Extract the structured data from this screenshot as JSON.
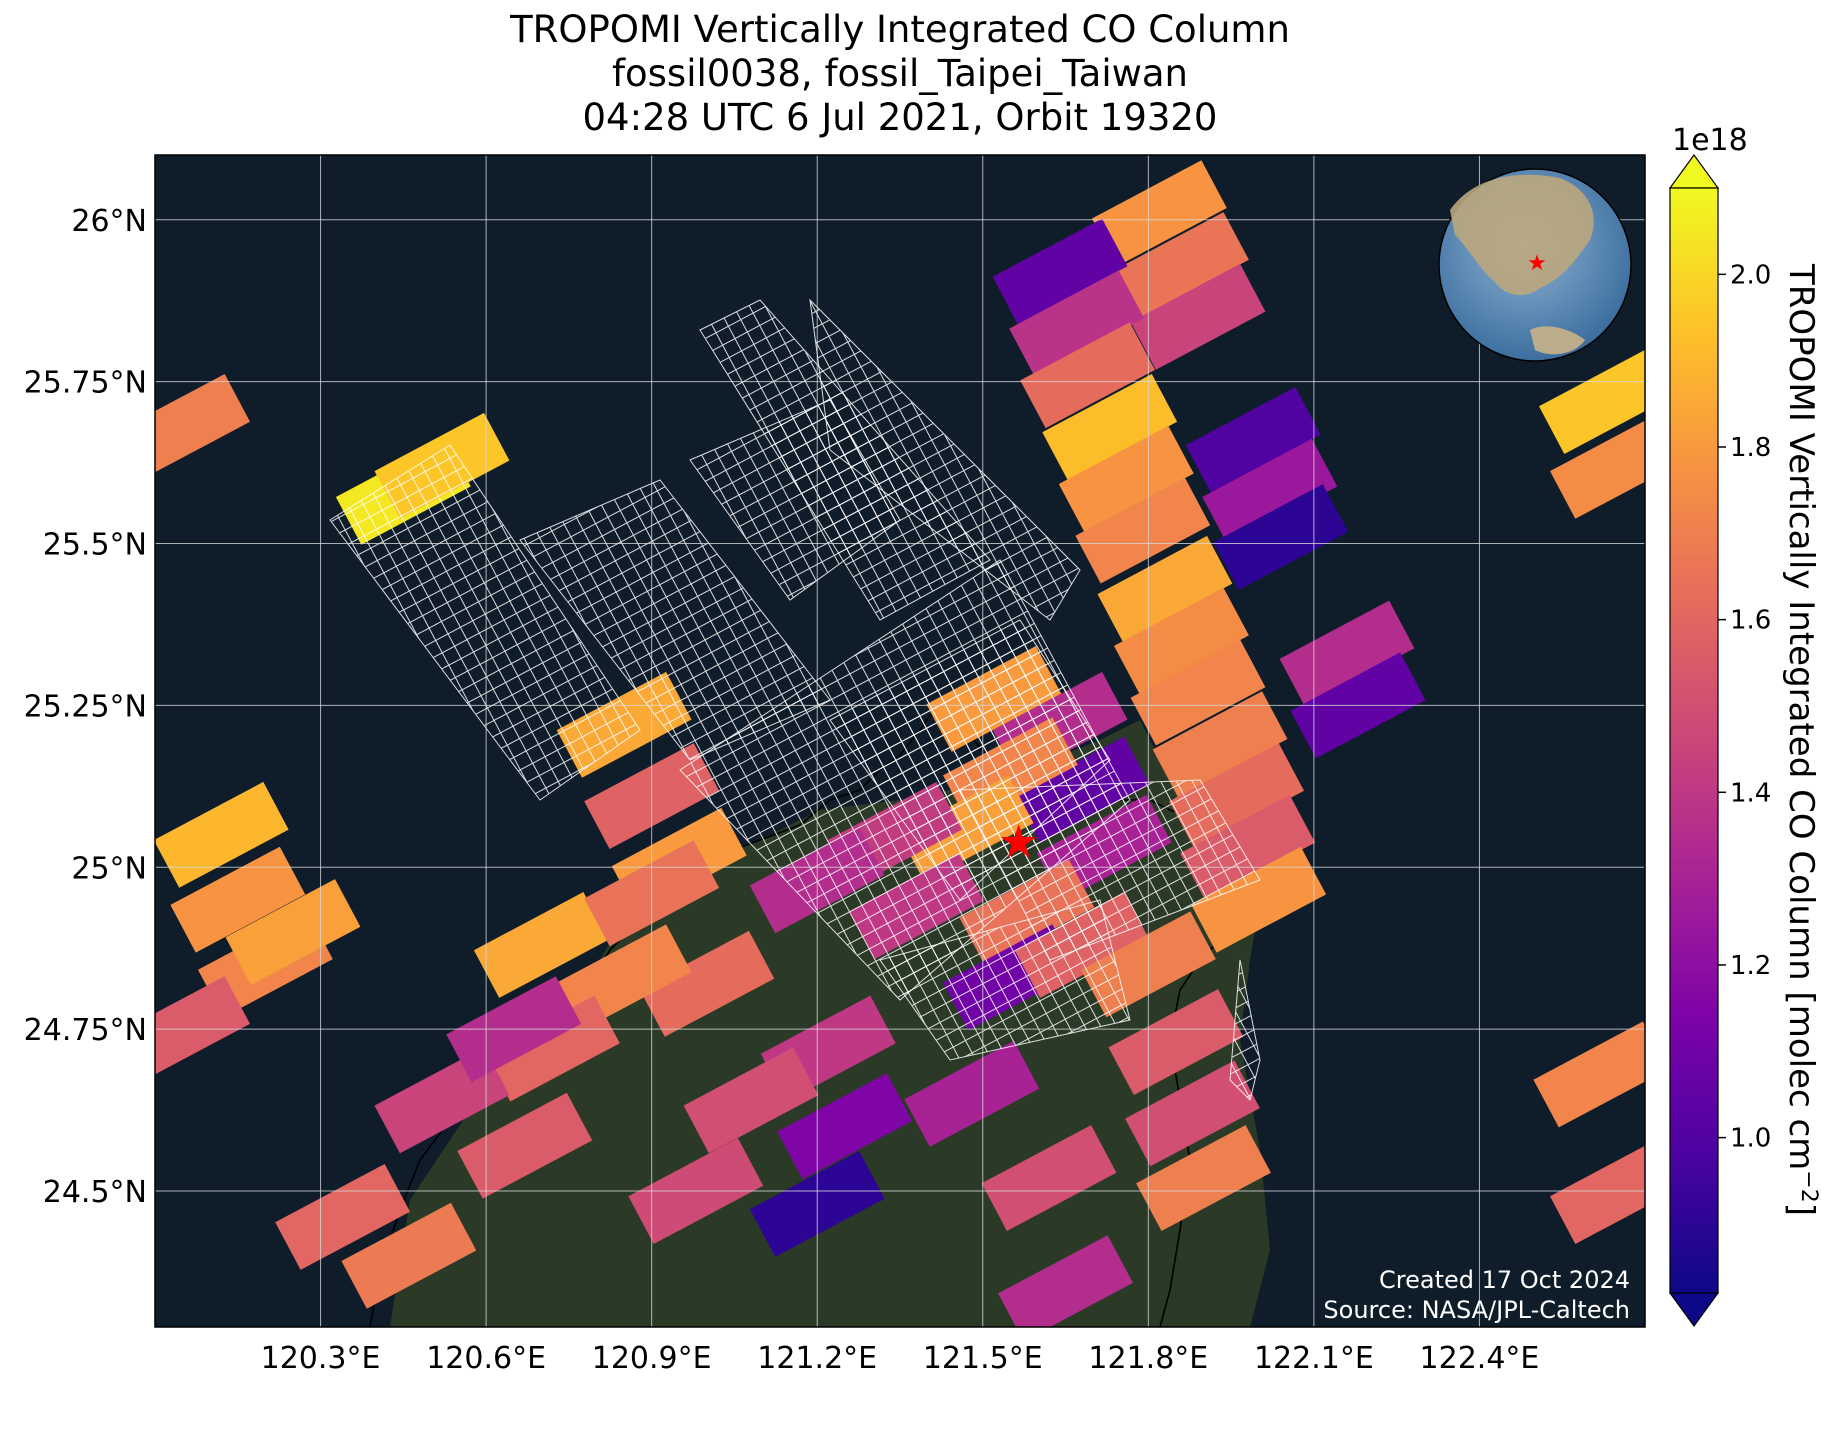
{
  "title": {
    "line1": "TROPOMI Vertically Integrated CO Column",
    "line2": "fossil0038, fossil_Taipei_Taiwan",
    "line3": "04:28 UTC 6 Jul 2021, Orbit 19320"
  },
  "map": {
    "lon_range": [
      120.0,
      122.7
    ],
    "lat_range": [
      24.29,
      26.1
    ],
    "lon_ticks": [
      {
        "value": 120.3,
        "label": "120.3°E"
      },
      {
        "value": 120.6,
        "label": "120.6°E"
      },
      {
        "value": 120.9,
        "label": "120.9°E"
      },
      {
        "value": 121.2,
        "label": "121.2°E"
      },
      {
        "value": 121.5,
        "label": "121.5°E"
      },
      {
        "value": 121.8,
        "label": "121.8°E"
      },
      {
        "value": 122.1,
        "label": "122.1°E"
      },
      {
        "value": 122.4,
        "label": "122.4°E"
      }
    ],
    "lat_ticks": [
      {
        "value": 26.0,
        "label": "26°N"
      },
      {
        "value": 25.75,
        "label": "25.75°N"
      },
      {
        "value": 25.5,
        "label": "25.5°N"
      },
      {
        "value": 25.25,
        "label": "25.25°N"
      },
      {
        "value": 25.0,
        "label": "25°N"
      },
      {
        "value": 24.75,
        "label": "24.75°N"
      },
      {
        "value": 24.5,
        "label": "24.5°N"
      }
    ],
    "site_marker": {
      "lon": 121.565,
      "lat": 25.04,
      "color": "#ff0000",
      "icon": "star-icon"
    },
    "background": "satellite-imagery",
    "ocean_color": "#0f1d2b",
    "land_color": "#2a3a26",
    "gridlines": true
  },
  "colorbar": {
    "exponent_label": "1e18",
    "label": "TROPOMI Vertically Integrated CO Column [molec cm",
    "label_exp": "−2",
    "label_close": "]",
    "range": [
      0.82,
      2.1
    ],
    "ticks": [
      {
        "value": 1.0,
        "label": "1.0"
      },
      {
        "value": 1.2,
        "label": "1.2"
      },
      {
        "value": 1.4,
        "label": "1.4"
      },
      {
        "value": 1.6,
        "label": "1.6"
      },
      {
        "value": 1.8,
        "label": "1.8"
      },
      {
        "value": 2.0,
        "label": "2.0"
      }
    ],
    "colormap": "plasma",
    "extend": "both"
  },
  "footer": {
    "created": "Created 17 Oct 2024",
    "source": "Source: NASA/JPL-Caltech"
  },
  "inset_globe": {
    "icon": "globe-icon",
    "marker_icon": "star-icon",
    "marker_color": "#ff0000"
  },
  "chart_data": {
    "type": "heatmap",
    "title": "TROPOMI Vertically Integrated CO Column",
    "xlabel": "",
    "ylabel": "",
    "units": "molec cm^-2 (x1e18)",
    "pixels": [
      {
        "lon": 121.82,
        "lat": 26.01,
        "value": 1.78
      },
      {
        "lon": 121.86,
        "lat": 25.93,
        "value": 1.66
      },
      {
        "lon": 121.89,
        "lat": 25.85,
        "value": 1.45
      },
      {
        "lon": 121.64,
        "lat": 25.92,
        "value": 1.05
      },
      {
        "lon": 121.67,
        "lat": 25.84,
        "value": 1.38
      },
      {
        "lon": 121.69,
        "lat": 25.76,
        "value": 1.62
      },
      {
        "lon": 121.73,
        "lat": 25.68,
        "value": 1.92
      },
      {
        "lon": 121.76,
        "lat": 25.6,
        "value": 1.78
      },
      {
        "lon": 121.79,
        "lat": 25.52,
        "value": 1.72
      },
      {
        "lon": 121.83,
        "lat": 25.43,
        "value": 1.85
      },
      {
        "lon": 121.86,
        "lat": 25.35,
        "value": 1.75
      },
      {
        "lon": 121.89,
        "lat": 25.27,
        "value": 1.72
      },
      {
        "lon": 121.93,
        "lat": 25.19,
        "value": 1.7
      },
      {
        "lon": 121.96,
        "lat": 25.11,
        "value": 1.62
      },
      {
        "lon": 121.98,
        "lat": 25.03,
        "value": 1.55
      },
      {
        "lon": 122.0,
        "lat": 24.95,
        "value": 1.78
      },
      {
        "lon": 121.99,
        "lat": 25.66,
        "value": 1.0
      },
      {
        "lon": 122.02,
        "lat": 25.58,
        "value": 1.25
      },
      {
        "lon": 122.04,
        "lat": 25.51,
        "value": 0.9
      },
      {
        "lon": 122.16,
        "lat": 25.33,
        "value": 1.35
      },
      {
        "lon": 122.18,
        "lat": 25.25,
        "value": 1.05
      },
      {
        "lon": 121.64,
        "lat": 25.22,
        "value": 1.35
      },
      {
        "lon": 121.68,
        "lat": 25.12,
        "value": 1.05
      },
      {
        "lon": 121.72,
        "lat": 25.03,
        "value": 1.3
      },
      {
        "lon": 121.52,
        "lat": 25.26,
        "value": 1.8
      },
      {
        "lon": 121.55,
        "lat": 25.15,
        "value": 1.72
      },
      {
        "lon": 121.47,
        "lat": 25.06,
        "value": 1.82
      },
      {
        "lon": 121.34,
        "lat": 25.05,
        "value": 1.42
      },
      {
        "lon": 121.38,
        "lat": 24.94,
        "value": 1.4
      },
      {
        "lon": 121.2,
        "lat": 24.98,
        "value": 1.35
      },
      {
        "lon": 121.58,
        "lat": 24.93,
        "value": 1.65
      },
      {
        "lon": 121.55,
        "lat": 24.83,
        "value": 1.1
      },
      {
        "lon": 121.68,
        "lat": 24.88,
        "value": 1.58
      },
      {
        "lon": 121.8,
        "lat": 24.85,
        "value": 1.7
      },
      {
        "lon": 121.85,
        "lat": 24.73,
        "value": 1.55
      },
      {
        "lon": 121.88,
        "lat": 24.62,
        "value": 1.5
      },
      {
        "lon": 121.9,
        "lat": 24.52,
        "value": 1.7
      },
      {
        "lon": 121.62,
        "lat": 24.52,
        "value": 1.5
      },
      {
        "lon": 121.65,
        "lat": 24.35,
        "value": 1.35
      },
      {
        "lon": 121.48,
        "lat": 24.65,
        "value": 1.3
      },
      {
        "lon": 121.25,
        "lat": 24.6,
        "value": 1.15
      },
      {
        "lon": 121.2,
        "lat": 24.48,
        "value": 0.9
      },
      {
        "lon": 121.22,
        "lat": 24.72,
        "value": 1.4
      },
      {
        "lon": 121.08,
        "lat": 24.64,
        "value": 1.5
      },
      {
        "lon": 120.98,
        "lat": 24.5,
        "value": 1.48
      },
      {
        "lon": 121.0,
        "lat": 24.82,
        "value": 1.62
      },
      {
        "lon": 120.85,
        "lat": 24.83,
        "value": 1.72
      },
      {
        "lon": 120.72,
        "lat": 24.72,
        "value": 1.6
      },
      {
        "lon": 120.67,
        "lat": 24.57,
        "value": 1.55
      },
      {
        "lon": 120.52,
        "lat": 24.64,
        "value": 1.45
      },
      {
        "lon": 120.46,
        "lat": 24.4,
        "value": 1.68
      },
      {
        "lon": 120.34,
        "lat": 24.46,
        "value": 1.6
      },
      {
        "lon": 120.65,
        "lat": 24.75,
        "value": 1.35
      },
      {
        "lon": 120.7,
        "lat": 24.88,
        "value": 1.85
      },
      {
        "lon": 120.85,
        "lat": 25.22,
        "value": 1.85
      },
      {
        "lon": 120.9,
        "lat": 25.11,
        "value": 1.58
      },
      {
        "lon": 120.95,
        "lat": 25.01,
        "value": 1.8
      },
      {
        "lon": 120.9,
        "lat": 24.96,
        "value": 1.65
      },
      {
        "lon": 120.05,
        "lat": 25.68,
        "value": 1.7
      },
      {
        "lon": 120.45,
        "lat": 25.58,
        "value": 2.05
      },
      {
        "lon": 120.52,
        "lat": 25.62,
        "value": 1.95
      },
      {
        "lon": 120.12,
        "lat": 25.05,
        "value": 1.9
      },
      {
        "lon": 120.15,
        "lat": 24.95,
        "value": 1.78
      },
      {
        "lon": 120.2,
        "lat": 24.85,
        "value": 1.72
      },
      {
        "lon": 120.25,
        "lat": 24.9,
        "value": 1.82
      },
      {
        "lon": 120.05,
        "lat": 24.75,
        "value": 1.55
      },
      {
        "lon": 122.63,
        "lat": 25.72,
        "value": 1.95
      },
      {
        "lon": 122.65,
        "lat": 25.62,
        "value": 1.75
      },
      {
        "lon": 122.62,
        "lat": 24.68,
        "value": 1.72
      },
      {
        "lon": 122.65,
        "lat": 24.5,
        "value": 1.6
      }
    ]
  }
}
